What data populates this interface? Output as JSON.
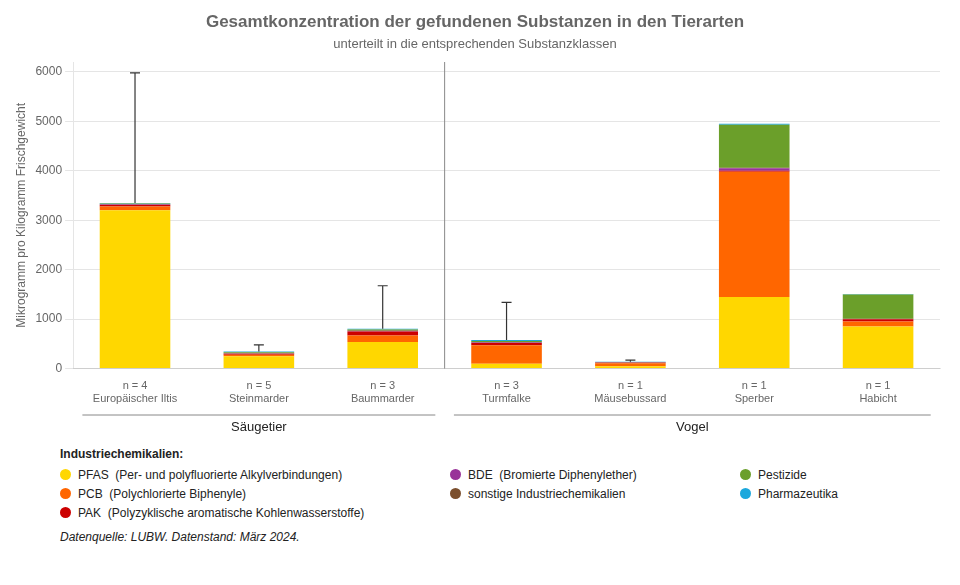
{
  "chart_data": {
    "type": "bar",
    "stacked": true,
    "title": "Gesamtkonzentration der gefundenen Substanzen in den Tierarten",
    "subtitle": "unterteilt in die entsprechenden Substanzklassen",
    "ylabel": "Mikrogramm pro Kilogramm Frischgewicht",
    "categories": [
      "n = 4\nEuropäischer Iltis",
      "n = 5\nSteinmarder",
      "n = 3\nBaummarder",
      "n = 3\nTurmfalke",
      "n = 1\nMäusebussard",
      "n = 1\nSperber",
      "n = 1\nHabicht"
    ],
    "groups": [
      {
        "name": "Säugetier",
        "size": 3
      },
      {
        "name": "Vogel",
        "size": 4
      }
    ],
    "series": [
      {
        "name": "PFAS  (Per- und polyfluorierte Alkylverbindungen)",
        "color": "#FFD700",
        "values": [
          3200,
          250,
          540,
          100,
          50,
          1450,
          850
        ]
      },
      {
        "name": "PCB  (Polychlorierte Biphenyle)",
        "color": "#FF6600",
        "values": [
          80,
          30,
          130,
          370,
          60,
          2530,
          100
        ]
      },
      {
        "name": "PAK  (Polyzyklische aromatische Kohlenwasserstoffe)",
        "color": "#CC0000",
        "values": [
          30,
          20,
          80,
          50,
          10,
          20,
          50
        ]
      },
      {
        "name": "BDE  (Bromierte Diphenylether)",
        "color": "#993399",
        "values": [
          10,
          5,
          10,
          10,
          5,
          50,
          5
        ]
      },
      {
        "name": "sonstige Industriechemikalien",
        "color": "#7B4F2E",
        "values": [
          10,
          5,
          10,
          10,
          5,
          10,
          5
        ]
      },
      {
        "name": "Pestizide",
        "color": "#6B9F2A",
        "values": [
          10,
          20,
          20,
          20,
          5,
          870,
          490
        ]
      },
      {
        "name": "Pharmazeutika",
        "color": "#1CA8DD",
        "values": [
          10,
          15,
          15,
          20,
          5,
          20,
          10
        ]
      }
    ],
    "totals": [
      3350,
      345,
      805,
      580,
      140,
      4950,
      1510
    ],
    "error_upper": [
      2630,
      135,
      870,
      760,
      30,
      null,
      null
    ],
    "ylim": [
      0,
      6200
    ],
    "yticks": [
      0,
      1000,
      2000,
      3000,
      4000,
      5000,
      6000
    ],
    "grid": true,
    "legend": "bottom",
    "legend_title": "Industriechemikalien:",
    "footnote": "Datenquelle: LUBW. Datenstand: März 2024."
  }
}
